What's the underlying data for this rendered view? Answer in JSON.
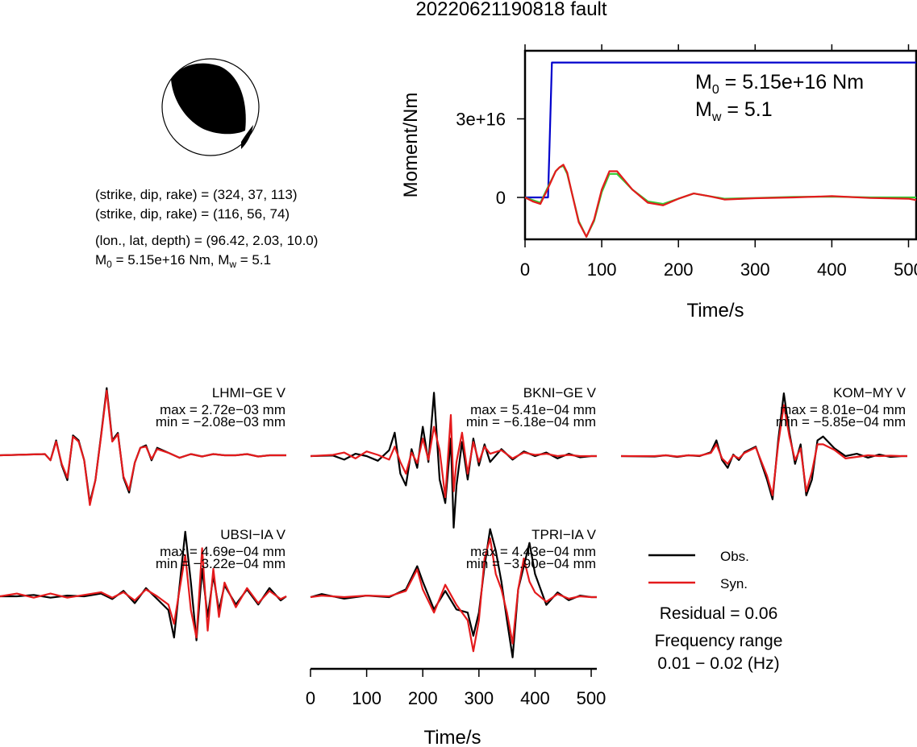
{
  "title": "20220621190818 fault",
  "beachball": {
    "plane1": "(strike, dip, rake) = (324, 37, 113)",
    "plane2": "(strike, dip, rake) = (116, 56, 74)",
    "location": "(lon., lat, depth) = (96.42, 2.03, 10.0)",
    "moment_prefix": "M",
    "moment_sub": "0",
    "moment_mid": " = 5.15e+16 Nm, M",
    "mw_sub": "w",
    "mw_suffix": " = 5.1"
  },
  "moment_panel": {
    "ylabel": "Moment/Nm",
    "xlabel": "Time/s",
    "m0_prefix": "M",
    "m0_sub": "0",
    "m0_value": " = 5.15e+16 Nm",
    "mw_prefix": "M",
    "mw_sub": "w",
    "mw_value": " = 5.1",
    "yticks": [
      "3e+16",
      "0"
    ],
    "xticks": [
      "0",
      "100",
      "200",
      "300",
      "400",
      "500"
    ]
  },
  "waveform_axis": {
    "xlabel": "Time/s",
    "xticks": [
      "0",
      "100",
      "200",
      "300",
      "400",
      "500"
    ]
  },
  "legend": {
    "obs_label": "Obs.",
    "syn_label": "Syn.",
    "obs_color": "#000000",
    "syn_color": "#e41a1c",
    "residual": "Residual = 0.06",
    "freq_label": "Frequency range",
    "freq_value": "0.01 − 0.02 (Hz)"
  },
  "colors": {
    "moment_rate_green": "#33cc33",
    "moment_rate_red": "#e41a1c",
    "cumulative_moment_blue": "#0000cc"
  },
  "chart_data": [
    {
      "type": "line",
      "title": "",
      "xlabel": "Time/s",
      "ylabel": "Moment/Nm",
      "xlim": [
        0,
        510
      ],
      "ylim": [
        -1.6e+16,
        5.6e+16
      ],
      "yticks": [
        0,
        3e+16
      ],
      "series": [
        {
          "name": "",
          "color": "blue",
          "x": [
            0,
            30,
            32,
            35,
            510
          ],
          "y": [
            0,
            0,
            2e+16,
            5.15e+16,
            5.15e+16
          ]
        },
        {
          "name": "",
          "color": "green",
          "x": [
            0,
            10,
            20,
            30,
            40,
            45,
            50,
            55,
            60,
            70,
            80,
            90,
            100,
            110,
            120,
            130,
            140,
            160,
            180,
            200,
            220,
            240,
            260,
            300,
            350,
            400,
            450,
            500,
            510
          ],
          "y": [
            0,
            -1000000000000000.0,
            -2000000000000000.0,
            4000000000000000.0,
            1e+16,
            1.15e+16,
            1.2e+16,
            9000000000000000.0,
            3000000000000000.0,
            -9000000000000000.0,
            -1.5e+16,
            -9000000000000000.0,
            2000000000000000.0,
            9000000000000000.0,
            9000000000000000.0,
            6000000000000000.0,
            3000000000000000.0,
            -1500000000000000.0,
            -2500000000000000.0,
            -500000000000000.0,
            1500000000000000.0,
            500000000000000.0,
            -500000000000000.0,
            -200000000000000.0,
            200000000000000.0,
            300000000000000.0,
            0.0,
            0.0,
            0.0
          ]
        },
        {
          "name": "",
          "color": "red",
          "x": [
            0,
            10,
            20,
            30,
            40,
            45,
            50,
            55,
            60,
            70,
            80,
            90,
            100,
            110,
            120,
            130,
            140,
            160,
            180,
            200,
            220,
            240,
            260,
            300,
            350,
            400,
            450,
            500,
            510
          ],
          "y": [
            0,
            -1500000000000000.0,
            -2500000000000000.0,
            3500000000000000.0,
            1e+16,
            1.15e+16,
            1.25e+16,
            9500000000000000.0,
            3000000000000000.0,
            -9500000000000000.0,
            -1.5e+16,
            -8500000000000000.0,
            3000000000000000.0,
            1e+16,
            1e+16,
            6500000000000000.0,
            3000000000000000.0,
            -2000000000000000.0,
            -3000000000000000.0,
            -500000000000000.0,
            1500000000000000.0,
            500000000000000.0,
            -800000000000000.0,
            -300000000000000.0,
            0.0,
            500000000000000.0,
            -200000000000000.0,
            -500000000000000.0,
            -1000000000000000.0
          ]
        }
      ]
    },
    {
      "type": "line",
      "station": "LHMI−GE V",
      "max_text": "max = 2.72e−03 mm",
      "min_text": "min = −2.08e−03 mm",
      "xlim": [
        0,
        510
      ],
      "ylim": [
        -0.00208,
        0.00272
      ],
      "series": [
        {
          "name": "Obs.",
          "color": "black",
          "x": [
            0,
            80,
            90,
            100,
            110,
            120,
            130,
            140,
            150,
            160,
            170,
            180,
            190,
            200,
            210,
            220,
            230,
            240,
            250,
            260,
            270,
            280,
            300,
            320,
            340,
            360,
            380,
            400,
            420,
            440,
            460,
            480,
            500,
            510
          ],
          "y": [
            0,
            5e-05,
            -0.0002,
            0.0006,
            -0.0004,
            -0.001,
            0.0008,
            0.0006,
            -0.0002,
            -0.0019,
            -0.001,
            0.0008,
            0.0027,
            0.0006,
            0.0009,
            -0.0009,
            -0.0015,
            -0.0003,
            0.0003,
            0.0004,
            -0.0002,
            0.0003,
            0.0001,
            -0.0001,
            5e-05,
            -5e-05,
            5e-05,
            0.0,
            0.0,
            5e-05,
            -5e-05,
            0.0,
            0.0,
            0.0
          ]
        },
        {
          "name": "Syn.",
          "color": "red",
          "x": [
            0,
            80,
            90,
            100,
            110,
            120,
            130,
            140,
            150,
            160,
            170,
            180,
            190,
            200,
            210,
            220,
            230,
            240,
            250,
            260,
            270,
            280,
            300,
            320,
            340,
            360,
            380,
            400,
            420,
            440,
            460,
            480,
            500,
            510
          ],
          "y": [
            0,
            5e-05,
            -0.0002,
            0.00055,
            -0.00035,
            -0.0009,
            0.00075,
            0.00055,
            -0.0002,
            -0.002,
            -0.001,
            0.00075,
            0.0026,
            0.00055,
            0.00085,
            -0.00085,
            -0.0014,
            -0.0003,
            0.0003,
            0.00035,
            -0.00015,
            0.00025,
            0.0001,
            -0.0001,
            5e-05,
            -5e-05,
            5e-05,
            0.0,
            0.0,
            5e-05,
            -5e-05,
            0.0,
            0.0,
            0.0
          ]
        }
      ]
    },
    {
      "type": "line",
      "station": "BKNI−GE V",
      "max_text": "max = 5.41e−04 mm",
      "min_text": "min = −6.18e−04 mm",
      "xlim": [
        0,
        510
      ],
      "ylim": [
        -0.000618,
        0.000541
      ],
      "series": [
        {
          "name": "Obs.",
          "color": "black",
          "x": [
            0,
            40,
            60,
            80,
            100,
            120,
            140,
            150,
            160,
            170,
            180,
            190,
            200,
            210,
            220,
            230,
            240,
            250,
            255,
            260,
            270,
            280,
            290,
            300,
            310,
            320,
            340,
            360,
            380,
            400,
            420,
            440,
            460,
            480,
            500,
            510
          ],
          "y": [
            0,
            5e-06,
            -3e-05,
            2e-05,
            0.0,
            -4e-05,
            5e-05,
            0.0002,
            -0.00015,
            -0.00025,
            6e-05,
            -0.0001,
            0.00025,
            -5e-05,
            0.00054,
            -0.0002,
            -0.0004,
            0.00015,
            -0.00061,
            -0.00025,
            0.00012,
            -0.0002,
            0.00015,
            -8e-05,
            0.0001,
            -5e-05,
            6e-05,
            -3e-05,
            4e-05,
            0.0,
            3e-05,
            -2e-05,
            2e-05,
            -1e-05,
            0.0,
            0.0
          ]
        },
        {
          "name": "Syn.",
          "color": "red",
          "x": [
            0,
            40,
            60,
            80,
            100,
            120,
            140,
            150,
            160,
            170,
            180,
            190,
            200,
            210,
            220,
            230,
            240,
            250,
            255,
            260,
            270,
            280,
            290,
            300,
            310,
            320,
            340,
            360,
            380,
            400,
            420,
            440,
            460,
            480,
            500,
            510
          ],
          "y": [
            0,
            1e-05,
            3e-05,
            -2e-05,
            4e-05,
            1e-05,
            -3e-05,
            8e-05,
            -5e-05,
            -0.00015,
            3e-05,
            -6e-05,
            0.00015,
            -3e-05,
            0.00025,
            5e-05,
            -0.00035,
            0.00035,
            -0.0003,
            -5e-05,
            0.0002,
            -0.00015,
            0.00012,
            -5e-05,
            8e-05,
            2e-05,
            5e-05,
            -2e-05,
            3e-05,
            1e-05,
            2e-05,
            0.0,
            1e-05,
            0.0,
            0.0,
            0.0
          ]
        }
      ]
    },
    {
      "type": "line",
      "station": "KOM−MY V",
      "max_text": "max = 8.01e−04 mm",
      "min_text": "min = −5.85e−04 mm",
      "xlim": [
        0,
        510
      ],
      "ylim": [
        -0.000585,
        0.000801
      ],
      "series": [
        {
          "name": "Obs.",
          "color": "black",
          "x": [
            0,
            60,
            80,
            100,
            120,
            140,
            160,
            170,
            180,
            190,
            200,
            210,
            220,
            240,
            260,
            270,
            280,
            290,
            300,
            310,
            320,
            330,
            340,
            350,
            360,
            380,
            400,
            420,
            440,
            460,
            480,
            500,
            510
          ],
          "y": [
            0,
            -5e-06,
            1e-05,
            -1e-05,
            1e-05,
            0.0,
            5e-05,
            0.0002,
            -5e-05,
            -0.00015,
            2e-05,
            -5e-05,
            5e-05,
            0.00012,
            -0.0003,
            -0.00055,
            0.0002,
            0.0008,
            0.0003,
            -0.0001,
            0.00015,
            -0.0005,
            -0.0003,
            0.0002,
            0.00025,
            0.0001,
            0.0,
            3e-05,
            -2e-05,
            2e-05,
            -1e-05,
            0.0,
            0.0
          ]
        },
        {
          "name": "Syn.",
          "color": "red",
          "x": [
            0,
            60,
            80,
            100,
            120,
            140,
            160,
            170,
            180,
            190,
            200,
            210,
            220,
            240,
            260,
            270,
            280,
            290,
            300,
            310,
            320,
            330,
            340,
            350,
            360,
            380,
            400,
            420,
            440,
            460,
            480,
            500,
            510
          ],
          "y": [
            0,
            0.0,
            1e-05,
            -5e-06,
            1e-05,
            5e-06,
            4e-05,
            0.00015,
            -3e-05,
            -0.0001,
            1e-05,
            -3e-05,
            4e-05,
            0.00011,
            -0.00025,
            -0.0005,
            0.00015,
            0.00065,
            0.00025,
            -5e-05,
            0.0001,
            -0.00045,
            -0.0002,
            0.00015,
            0.00015,
            8e-05,
            -3e-05,
            -1e-05,
            1e-05,
            0.0,
            5e-06,
            0.0,
            0.0
          ]
        }
      ]
    },
    {
      "type": "line",
      "station": "UBSI−IA V",
      "max_text": "max = 4.69e−04 mm",
      "min_text": "min = −3.22e−04 mm",
      "xlim": [
        0,
        510
      ],
      "ylim": [
        -0.000322,
        0.000469
      ],
      "series": [
        {
          "name": "Obs.",
          "color": "black",
          "x": [
            0,
            30,
            60,
            90,
            120,
            150,
            180,
            200,
            220,
            240,
            260,
            280,
            300,
            310,
            320,
            330,
            340,
            350,
            360,
            370,
            380,
            390,
            400,
            420,
            440,
            460,
            480,
            500,
            510
          ],
          "y": [
            0,
            0.0,
            1e-05,
            -1e-05,
            5e-06,
            0.0,
            2e-05,
            -2e-05,
            4e-05,
            -5e-05,
            6e-05,
            -2e-05,
            -0.0001,
            -0.0003,
            8e-05,
            0.00047,
            0.0001,
            -0.00032,
            0.0002,
            -0.00015,
            0.00015,
            -0.0001,
            8e-05,
            -6e-05,
            5e-05,
            -6e-05,
            6e-05,
            -3e-05,
            0.0
          ]
        },
        {
          "name": "Syn.",
          "color": "red",
          "x": [
            0,
            30,
            60,
            90,
            120,
            150,
            180,
            200,
            220,
            240,
            260,
            280,
            300,
            310,
            320,
            330,
            340,
            350,
            360,
            370,
            380,
            390,
            400,
            420,
            440,
            460,
            480,
            500,
            510
          ],
          "y": [
            0,
            2e-05,
            -1e-05,
            2e-05,
            -1e-05,
            1e-05,
            3e-05,
            -1e-05,
            3e-05,
            -3e-05,
            5e-05,
            0.0,
            -6e-05,
            -0.0002,
            5e-05,
            0.0003,
            -0.0001,
            -0.0003,
            0.00035,
            -0.00025,
            0.0002,
            -0.00015,
            0.0001,
            -8e-05,
            6e-05,
            -5e-05,
            4e-05,
            -2e-05,
            0.0
          ]
        }
      ]
    },
    {
      "type": "line",
      "station": "TPRI−IA V",
      "max_text": "max = 4.43e−04 mm",
      "min_text": "min = −3.90e−04 mm",
      "xlim": [
        0,
        510
      ],
      "ylim": [
        -0.00039,
        0.000443
      ],
      "series": [
        {
          "name": "Obs.",
          "color": "black",
          "x": [
            0,
            20,
            60,
            100,
            140,
            170,
            190,
            200,
            220,
            240,
            260,
            280,
            290,
            300,
            310,
            320,
            330,
            340,
            350,
            360,
            370,
            380,
            390,
            400,
            420,
            440,
            460,
            480,
            500,
            510
          ],
          "y": [
            0,
            2e-05,
            -1e-05,
            1e-05,
            0.0,
            5e-05,
            0.0002,
            0.0001,
            -8e-05,
            4e-05,
            -8e-05,
            -0.0001,
            -0.00025,
            -0.0001,
            0.0002,
            0.00044,
            0.0003,
            0.0001,
            -0.00015,
            -0.00039,
            5e-05,
            0.0002,
            0.00035,
            0.00015,
            -5e-05,
            3e-05,
            -2e-05,
            1e-05,
            0.0,
            0.0
          ]
        },
        {
          "name": "Syn.",
          "color": "red",
          "x": [
            0,
            20,
            60,
            100,
            140,
            170,
            190,
            200,
            220,
            240,
            260,
            280,
            290,
            300,
            310,
            320,
            330,
            340,
            350,
            360,
            370,
            380,
            390,
            400,
            420,
            440,
            460,
            480,
            500,
            510
          ],
          "y": [
            0,
            1e-05,
            0.0,
            1e-05,
            5e-06,
            4e-05,
            0.00018,
            5e-05,
            -0.0001,
            8e-05,
            -5e-05,
            -0.00015,
            -0.00035,
            -0.00015,
            0.00025,
            0.00038,
            0.00015,
            5e-05,
            -0.0001,
            -0.0003,
            5e-05,
            0.00025,
            0.0001,
            3e-05,
            -3e-05,
            2e-05,
            -1e-05,
            5e-06,
            0.0,
            0.0
          ]
        }
      ]
    }
  ]
}
